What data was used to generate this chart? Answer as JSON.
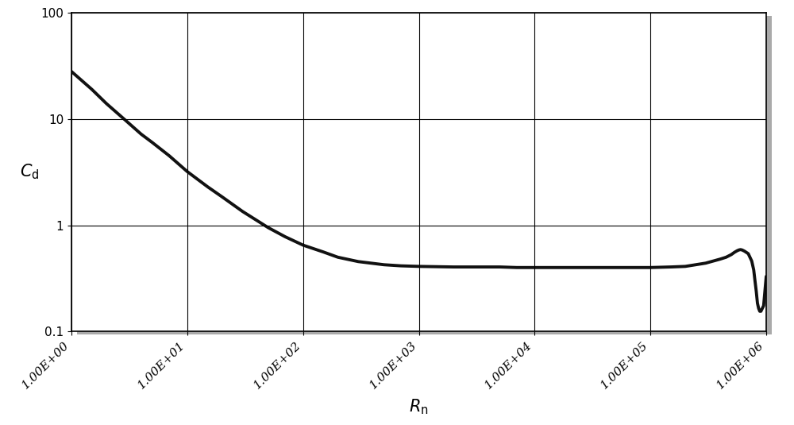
{
  "title": "",
  "xlabel": "$\\mathit{R}_{\\mathrm{n}}$",
  "ylabel": "$\\mathit{C}_{\\mathrm{d}}$",
  "xlim": [
    1.0,
    1000000.0
  ],
  "ylim": [
    0.1,
    100
  ],
  "line_color": "#111111",
  "line_width": 2.8,
  "background_color": "#ffffff",
  "grid_color": "#000000",
  "curve_rn": [
    1.0,
    1.5,
    2.0,
    3.0,
    4.0,
    5.0,
    7.0,
    10.0,
    15.0,
    20.0,
    30.0,
    50.0,
    70.0,
    100.0,
    150.0,
    200.0,
    300.0,
    500.0,
    700.0,
    1000.0,
    2000.0,
    3000.0,
    5000.0,
    7000.0,
    10000.0,
    20000.0,
    50000.0,
    70000.0,
    100000.0,
    150000.0,
    200000.0,
    300000.0,
    400000.0,
    450000.0,
    500000.0,
    530000.0,
    560000.0,
    580000.0,
    600000.0,
    620000.0,
    650000.0,
    700000.0,
    750000.0,
    780000.0,
    800000.0,
    820000.0,
    840000.0,
    860000.0,
    880000.0,
    900000.0,
    950000.0,
    1000000.0
  ],
  "curve_cd": [
    28.0,
    19.0,
    14.0,
    9.5,
    7.2,
    6.0,
    4.5,
    3.2,
    2.3,
    1.85,
    1.35,
    0.95,
    0.78,
    0.65,
    0.56,
    0.5,
    0.455,
    0.425,
    0.415,
    0.41,
    0.405,
    0.405,
    0.405,
    0.4,
    0.4,
    0.4,
    0.4,
    0.4,
    0.4,
    0.405,
    0.41,
    0.44,
    0.48,
    0.5,
    0.53,
    0.555,
    0.575,
    0.585,
    0.59,
    0.585,
    0.57,
    0.54,
    0.46,
    0.38,
    0.3,
    0.24,
    0.185,
    0.165,
    0.155,
    0.155,
    0.175,
    0.33
  ],
  "xtick_labels": [
    "1.00E+00",
    "1.00E+01",
    "1.00E+02",
    "1.00E+03",
    "1.00E+04",
    "1.00E+05",
    "1.00E+06"
  ],
  "xtick_values": [
    1.0,
    10.0,
    100.0,
    1000.0,
    10000.0,
    100000.0,
    1000000.0
  ],
  "ytick_labels": [
    "0.1",
    "1",
    "10",
    "100"
  ],
  "ytick_values": [
    0.1,
    1,
    10,
    100
  ],
  "xlabel_fontsize": 15,
  "ylabel_fontsize": 15,
  "tick_fontsize": 11
}
